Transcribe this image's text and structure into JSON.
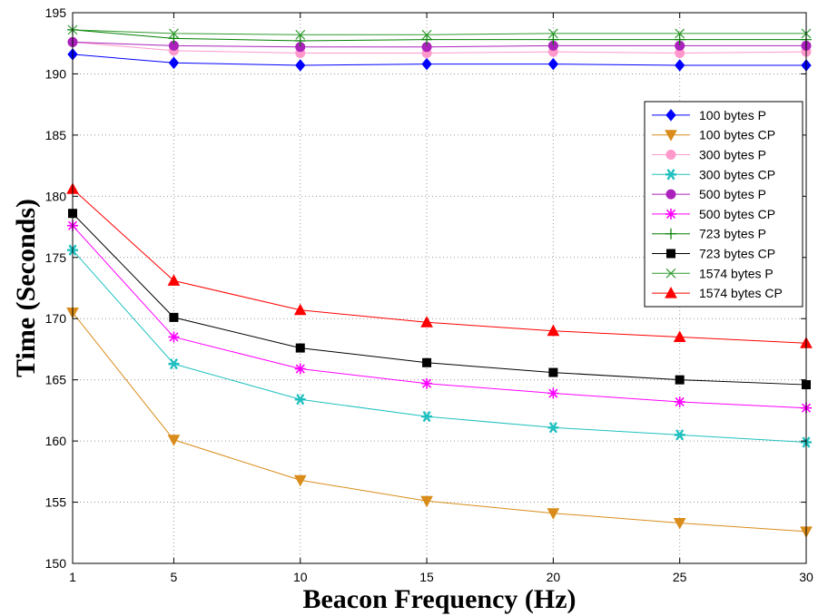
{
  "chart_data": {
    "type": "line",
    "xlabel": "Beacon Frequency (Hz)",
    "ylabel": "Time (Seconds)",
    "x": [
      1,
      5,
      10,
      15,
      20,
      25,
      30
    ],
    "xticks": [
      "1",
      "5",
      "10",
      "15",
      "20",
      "25",
      "30"
    ],
    "yticks": [
      "150",
      "155",
      "160",
      "165",
      "170",
      "175",
      "180",
      "185",
      "190",
      "195"
    ],
    "xlim": [
      1,
      30
    ],
    "ylim": [
      150,
      195
    ],
    "grid": "dotted",
    "legend_position": "upper-right",
    "series": [
      {
        "name": "100 bytes P",
        "color": "#0000ff",
        "marker": "diamond",
        "values": [
          191.6,
          190.9,
          190.7,
          190.8,
          190.8,
          190.7,
          190.7
        ]
      },
      {
        "name": "100 bytes CP",
        "color": "#d98c1a",
        "marker": "triangle-down",
        "values": [
          170.5,
          160.1,
          156.8,
          155.1,
          154.1,
          153.3,
          152.6
        ]
      },
      {
        "name": "300 bytes P",
        "color": "#ff99cc",
        "marker": "circle",
        "values": [
          192.6,
          191.9,
          191.7,
          191.7,
          191.8,
          191.7,
          191.8
        ]
      },
      {
        "name": "300 bytes CP",
        "color": "#20c0c0",
        "marker": "star",
        "values": [
          175.6,
          166.3,
          163.4,
          162.0,
          161.1,
          160.5,
          159.9
        ]
      },
      {
        "name": "500 bytes P",
        "color": "#aa22bb",
        "marker": "circle",
        "values": [
          192.6,
          192.3,
          192.2,
          192.2,
          192.3,
          192.3,
          192.3
        ]
      },
      {
        "name": "500 bytes CP",
        "color": "#ff00ff",
        "marker": "asterisk",
        "values": [
          177.6,
          168.5,
          165.9,
          164.7,
          163.9,
          163.2,
          162.7
        ]
      },
      {
        "name": "723 bytes P",
        "color": "#008000",
        "marker": "plus",
        "values": [
          193.6,
          192.9,
          192.7,
          192.8,
          192.8,
          192.8,
          192.8
        ]
      },
      {
        "name": "723 bytes CP",
        "color": "#000000",
        "marker": "square",
        "values": [
          178.6,
          170.1,
          167.6,
          166.4,
          165.6,
          165.0,
          164.6
        ]
      },
      {
        "name": "1574 bytes P",
        "color": "#2f9a2f",
        "marker": "x",
        "values": [
          193.6,
          193.3,
          193.2,
          193.2,
          193.3,
          193.3,
          193.3
        ]
      },
      {
        "name": "1574 bytes CP",
        "color": "#ff0000",
        "marker": "triangle-up",
        "values": [
          180.6,
          173.1,
          170.7,
          169.7,
          169.0,
          168.5,
          168.0
        ]
      }
    ]
  }
}
